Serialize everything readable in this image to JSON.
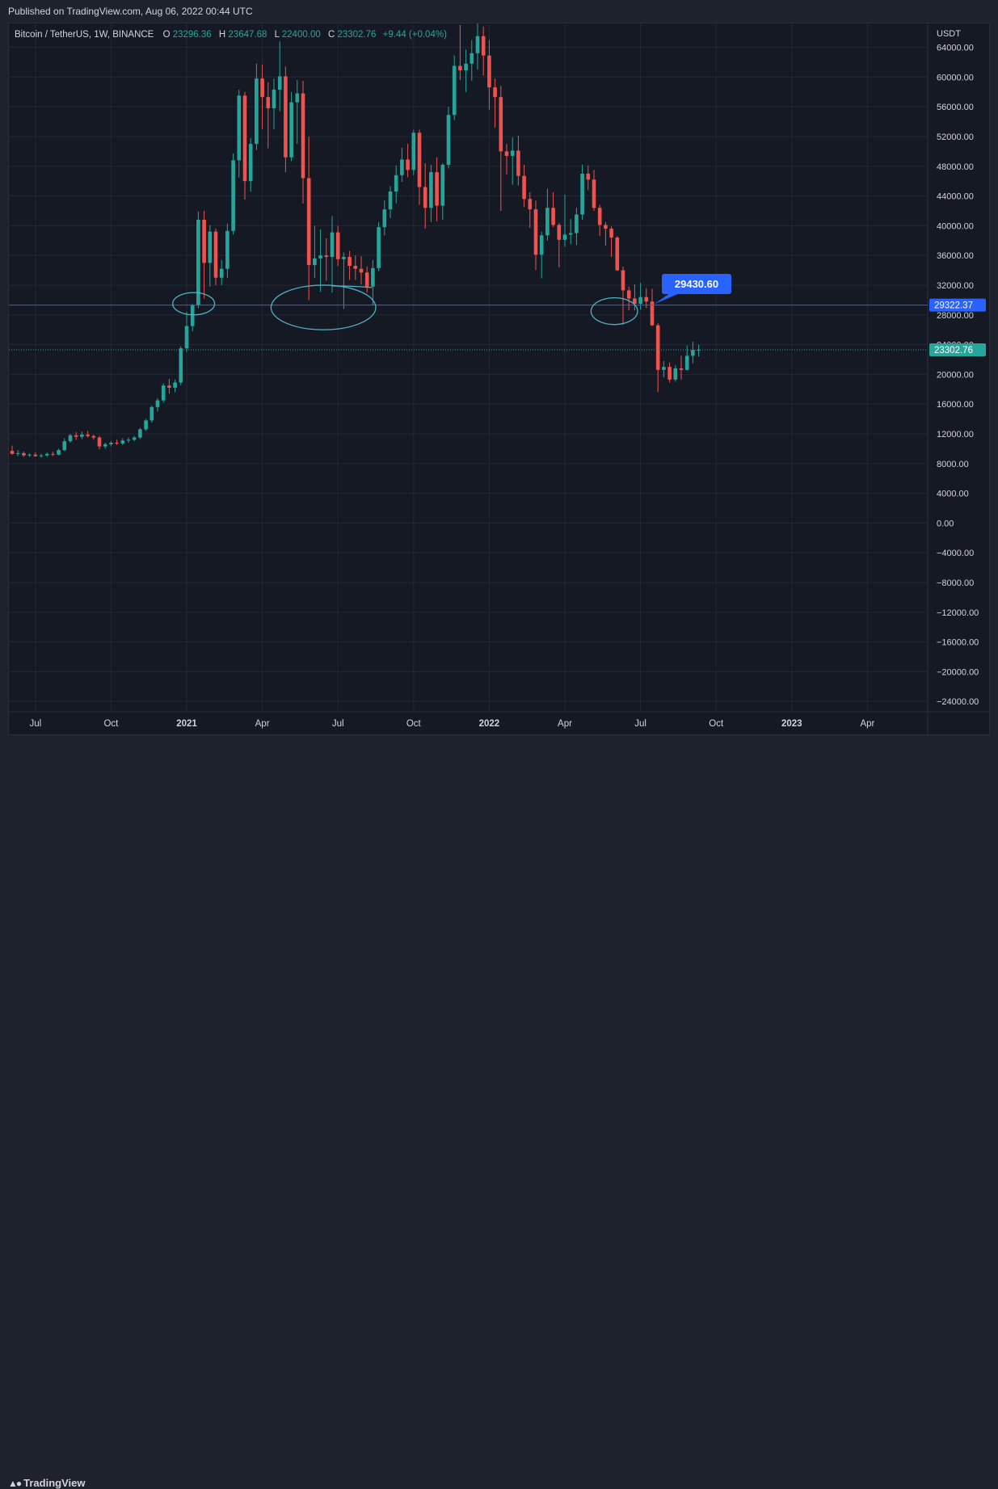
{
  "header": {
    "published": "Published on TradingView.com, Aug 06, 2022 00:44 UTC"
  },
  "footer": {
    "brand": "TradingView",
    "logo_icon": "tradingview-logo-icon"
  },
  "colors": {
    "up": "#26a69a",
    "down": "#ef5350",
    "bg": "#151924",
    "grid": "#232735",
    "hline": "#2962ff",
    "drawing": "#4fb3c4"
  },
  "legend": {
    "symbol": "Bitcoin / TetherUS, 1W, BINANCE",
    "o_label": "O",
    "o": "23296.36",
    "h_label": "H",
    "h": "23647.68",
    "l_label": "L",
    "l": "22400.00",
    "c_label": "C",
    "c": "23302.76",
    "change": "+9.44 (+0.04%)"
  },
  "price_scale": {
    "unit": "USDT",
    "hline_label": "29322.37",
    "last_price_label": "23302.76",
    "callout": "29430.60"
  },
  "chart_data": {
    "type": "candlestick",
    "title": "Bitcoin / TetherUS, 1W, BINANCE",
    "ylabel": "USDT",
    "ylim": [
      -26000,
      67000
    ],
    "y_ticks": [
      "64000.00",
      "60000.00",
      "56000.00",
      "52000.00",
      "48000.00",
      "44000.00",
      "40000.00",
      "36000.00",
      "32000.00",
      "28000.00",
      "24000.00",
      "20000.00",
      "16000.00",
      "12000.00",
      "8000.00",
      "4000.00",
      "0.00",
      "−4000.00",
      "−8000.00",
      "−12000.00",
      "−16000.00",
      "−20000.00",
      "−24000.00"
    ],
    "x_ticks": [
      {
        "label": "Jul",
        "week": 4,
        "bold": false
      },
      {
        "label": "Oct",
        "week": 17,
        "bold": false
      },
      {
        "label": "2021",
        "week": 30,
        "bold": true
      },
      {
        "label": "Apr",
        "week": 43,
        "bold": false
      },
      {
        "label": "Jul",
        "week": 56,
        "bold": false
      },
      {
        "label": "Oct",
        "week": 69,
        "bold": false
      },
      {
        "label": "2022",
        "week": 82,
        "bold": true
      },
      {
        "label": "Apr",
        "week": 95,
        "bold": false
      },
      {
        "label": "Jul",
        "week": 108,
        "bold": false
      },
      {
        "label": "Oct",
        "week": 121,
        "bold": false
      },
      {
        "label": "2023",
        "week": 134,
        "bold": true
      },
      {
        "label": "Apr",
        "week": 147,
        "bold": false
      }
    ],
    "horizontal_line": 29322.37,
    "last_price": 23302.76,
    "callout_value": 29430.6,
    "drawings": [
      {
        "type": "ellipse",
        "week_center": 31.2,
        "price_center": 29500,
        "week_radius": 3.6,
        "price_radius": 1500
      },
      {
        "type": "ellipse",
        "week_center": 53.5,
        "price_center": 29000,
        "week_radius": 9,
        "price_radius": 3000
      },
      {
        "type": "ellipse",
        "week_center": 103.5,
        "price_center": 28500,
        "week_radius": 4,
        "price_radius": 1800
      }
    ],
    "candles": [
      {
        "o": 9700,
        "h": 10400,
        "l": 9200,
        "c": 9300
      },
      {
        "o": 9300,
        "h": 9800,
        "l": 9000,
        "c": 9400
      },
      {
        "o": 9400,
        "h": 9600,
        "l": 8900,
        "c": 9100
      },
      {
        "o": 9100,
        "h": 9400,
        "l": 8900,
        "c": 9200
      },
      {
        "o": 9200,
        "h": 9500,
        "l": 8900,
        "c": 9000
      },
      {
        "o": 9000,
        "h": 9300,
        "l": 8800,
        "c": 9100
      },
      {
        "o": 9100,
        "h": 9500,
        "l": 8900,
        "c": 9300
      },
      {
        "o": 9300,
        "h": 9600,
        "l": 9000,
        "c": 9200
      },
      {
        "o": 9200,
        "h": 10000,
        "l": 9100,
        "c": 9800
      },
      {
        "o": 9800,
        "h": 11400,
        "l": 9700,
        "c": 11000
      },
      {
        "o": 11000,
        "h": 12000,
        "l": 10800,
        "c": 11800
      },
      {
        "o": 11800,
        "h": 12200,
        "l": 11200,
        "c": 11600
      },
      {
        "o": 11600,
        "h": 12300,
        "l": 11300,
        "c": 11900
      },
      {
        "o": 11900,
        "h": 12400,
        "l": 11500,
        "c": 11700
      },
      {
        "o": 11700,
        "h": 11900,
        "l": 11200,
        "c": 11500
      },
      {
        "o": 11500,
        "h": 11700,
        "l": 9900,
        "c": 10300
      },
      {
        "o": 10300,
        "h": 10800,
        "l": 10000,
        "c": 10600
      },
      {
        "o": 10600,
        "h": 11000,
        "l": 10300,
        "c": 10800
      },
      {
        "o": 10800,
        "h": 11200,
        "l": 10500,
        "c": 10700
      },
      {
        "o": 10700,
        "h": 11400,
        "l": 10500,
        "c": 11100
      },
      {
        "o": 11100,
        "h": 11500,
        "l": 10800,
        "c": 11200
      },
      {
        "o": 11200,
        "h": 11700,
        "l": 11000,
        "c": 11500
      },
      {
        "o": 11500,
        "h": 12800,
        "l": 11300,
        "c": 12600
      },
      {
        "o": 12600,
        "h": 14000,
        "l": 12400,
        "c": 13800
      },
      {
        "o": 13800,
        "h": 15800,
        "l": 13500,
        "c": 15600
      },
      {
        "o": 15600,
        "h": 16800,
        "l": 15000,
        "c": 16500
      },
      {
        "o": 16500,
        "h": 18800,
        "l": 16200,
        "c": 18500
      },
      {
        "o": 18500,
        "h": 19400,
        "l": 17400,
        "c": 18200
      },
      {
        "o": 18200,
        "h": 19300,
        "l": 17600,
        "c": 18900
      },
      {
        "o": 18900,
        "h": 23800,
        "l": 18500,
        "c": 23500
      },
      {
        "o": 23500,
        "h": 28400,
        "l": 23000,
        "c": 26500
      },
      {
        "o": 26500,
        "h": 29500,
        "l": 25800,
        "c": 29300
      },
      {
        "o": 29300,
        "h": 41900,
        "l": 28900,
        "c": 40800
      },
      {
        "o": 40800,
        "h": 42000,
        "l": 30200,
        "c": 35000
      },
      {
        "o": 35000,
        "h": 40100,
        "l": 31800,
        "c": 39200
      },
      {
        "o": 39200,
        "h": 39600,
        "l": 32000,
        "c": 33000
      },
      {
        "o": 33000,
        "h": 35400,
        "l": 32000,
        "c": 34200
      },
      {
        "o": 34200,
        "h": 40300,
        "l": 33000,
        "c": 39300
      },
      {
        "o": 39300,
        "h": 49700,
        "l": 38800,
        "c": 48800
      },
      {
        "o": 48800,
        "h": 58300,
        "l": 46500,
        "c": 57500
      },
      {
        "o": 57500,
        "h": 58000,
        "l": 43500,
        "c": 46000
      },
      {
        "o": 46000,
        "h": 51800,
        "l": 44600,
        "c": 51000
      },
      {
        "o": 51000,
        "h": 61800,
        "l": 50200,
        "c": 59800
      },
      {
        "o": 59800,
        "h": 61700,
        "l": 53000,
        "c": 57300
      },
      {
        "o": 57300,
        "h": 59300,
        "l": 50400,
        "c": 55800
      },
      {
        "o": 55800,
        "h": 59800,
        "l": 53000,
        "c": 58300
      },
      {
        "o": 58300,
        "h": 64800,
        "l": 55400,
        "c": 60100
      },
      {
        "o": 60100,
        "h": 61400,
        "l": 47200,
        "c": 49200
      },
      {
        "o": 49200,
        "h": 58000,
        "l": 48700,
        "c": 56600
      },
      {
        "o": 56600,
        "h": 59600,
        "l": 51000,
        "c": 57800
      },
      {
        "o": 57800,
        "h": 59500,
        "l": 43000,
        "c": 46400
      },
      {
        "o": 46400,
        "h": 52000,
        "l": 30000,
        "c": 34700
      },
      {
        "o": 34700,
        "h": 40000,
        "l": 33000,
        "c": 35600
      },
      {
        "o": 35600,
        "h": 39500,
        "l": 31100,
        "c": 36000
      },
      {
        "o": 36000,
        "h": 38300,
        "l": 32600,
        "c": 35800
      },
      {
        "o": 35800,
        "h": 41300,
        "l": 31000,
        "c": 39100
      },
      {
        "o": 39100,
        "h": 40000,
        "l": 34600,
        "c": 35500
      },
      {
        "o": 35500,
        "h": 36400,
        "l": 28800,
        "c": 35800
      },
      {
        "o": 35800,
        "h": 36600,
        "l": 32700,
        "c": 34600
      },
      {
        "o": 34600,
        "h": 36000,
        "l": 32700,
        "c": 34200
      },
      {
        "o": 34200,
        "h": 35900,
        "l": 32100,
        "c": 33700
      },
      {
        "o": 33700,
        "h": 34500,
        "l": 31000,
        "c": 31800
      },
      {
        "o": 31800,
        "h": 35400,
        "l": 29300,
        "c": 34300
      },
      {
        "o": 34300,
        "h": 40500,
        "l": 33900,
        "c": 39800
      },
      {
        "o": 39800,
        "h": 43400,
        "l": 38700,
        "c": 42200
      },
      {
        "o": 42200,
        "h": 45300,
        "l": 41000,
        "c": 44600
      },
      {
        "o": 44600,
        "h": 48100,
        "l": 43000,
        "c": 46800
      },
      {
        "o": 46800,
        "h": 50500,
        "l": 45900,
        "c": 48900
      },
      {
        "o": 48900,
        "h": 51000,
        "l": 46500,
        "c": 47500
      },
      {
        "o": 47500,
        "h": 52900,
        "l": 46800,
        "c": 52500
      },
      {
        "o": 52500,
        "h": 52900,
        "l": 42800,
        "c": 45200
      },
      {
        "o": 45200,
        "h": 48400,
        "l": 39600,
        "c": 42400
      },
      {
        "o": 42400,
        "h": 48200,
        "l": 40500,
        "c": 47200
      },
      {
        "o": 47200,
        "h": 49200,
        "l": 40600,
        "c": 42700
      },
      {
        "o": 42700,
        "h": 48400,
        "l": 40800,
        "c": 48200
      },
      {
        "o": 48200,
        "h": 56000,
        "l": 47700,
        "c": 54900
      },
      {
        "o": 54900,
        "h": 62900,
        "l": 54200,
        "c": 61500
      },
      {
        "o": 61500,
        "h": 67000,
        "l": 59600,
        "c": 60900
      },
      {
        "o": 60900,
        "h": 63700,
        "l": 58000,
        "c": 61800
      },
      {
        "o": 61800,
        "h": 65000,
        "l": 59500,
        "c": 63200
      },
      {
        "o": 63200,
        "h": 67500,
        "l": 61000,
        "c": 65500
      },
      {
        "o": 65500,
        "h": 66800,
        "l": 60200,
        "c": 62900
      },
      {
        "o": 62900,
        "h": 65000,
        "l": 55600,
        "c": 58600
      },
      {
        "o": 58600,
        "h": 59800,
        "l": 53200,
        "c": 57300
      },
      {
        "o": 57300,
        "h": 58800,
        "l": 42000,
        "c": 50000
      },
      {
        "o": 50000,
        "h": 51000,
        "l": 46900,
        "c": 49400
      },
      {
        "o": 49400,
        "h": 51900,
        "l": 45500,
        "c": 50100
      },
      {
        "o": 50100,
        "h": 52100,
        "l": 45400,
        "c": 46700
      },
      {
        "o": 46700,
        "h": 48200,
        "l": 42500,
        "c": 43600
      },
      {
        "o": 43600,
        "h": 44500,
        "l": 39700,
        "c": 42200
      },
      {
        "o": 42200,
        "h": 43400,
        "l": 34000,
        "c": 36100
      },
      {
        "o": 36100,
        "h": 39200,
        "l": 32900,
        "c": 38700
      },
      {
        "o": 38700,
        "h": 45000,
        "l": 38000,
        "c": 42400
      },
      {
        "o": 42400,
        "h": 44500,
        "l": 39800,
        "c": 40100
      },
      {
        "o": 40100,
        "h": 40400,
        "l": 34400,
        "c": 38100
      },
      {
        "o": 38100,
        "h": 44200,
        "l": 37200,
        "c": 38800
      },
      {
        "o": 38800,
        "h": 40900,
        "l": 37500,
        "c": 39000
      },
      {
        "o": 39000,
        "h": 42400,
        "l": 37400,
        "c": 41500
      },
      {
        "o": 41500,
        "h": 48200,
        "l": 40800,
        "c": 47000
      },
      {
        "o": 47000,
        "h": 48100,
        "l": 44800,
        "c": 46200
      },
      {
        "o": 46200,
        "h": 47500,
        "l": 42000,
        "c": 42400
      },
      {
        "o": 42400,
        "h": 42800,
        "l": 38600,
        "c": 40100
      },
      {
        "o": 40100,
        "h": 40500,
        "l": 37300,
        "c": 39600
      },
      {
        "o": 39600,
        "h": 39900,
        "l": 35800,
        "c": 38400
      },
      {
        "o": 38400,
        "h": 38600,
        "l": 33900,
        "c": 34000
      },
      {
        "o": 34000,
        "h": 34500,
        "l": 26700,
        "c": 31300
      },
      {
        "o": 31300,
        "h": 31800,
        "l": 28600,
        "c": 30200
      },
      {
        "o": 30200,
        "h": 32100,
        "l": 28600,
        "c": 29500
      },
      {
        "o": 29500,
        "h": 32300,
        "l": 28700,
        "c": 30400
      },
      {
        "o": 30400,
        "h": 31600,
        "l": 28900,
        "c": 29800
      },
      {
        "o": 29800,
        "h": 31500,
        "l": 26500,
        "c": 26600
      },
      {
        "o": 26600,
        "h": 26900,
        "l": 17600,
        "c": 20600
      },
      {
        "o": 20600,
        "h": 21800,
        "l": 19600,
        "c": 21000
      },
      {
        "o": 21000,
        "h": 21600,
        "l": 18900,
        "c": 19300
      },
      {
        "o": 19300,
        "h": 21200,
        "l": 19000,
        "c": 20800
      },
      {
        "o": 20800,
        "h": 22500,
        "l": 19300,
        "c": 20600
      },
      {
        "o": 20600,
        "h": 23900,
        "l": 20500,
        "c": 22500
      },
      {
        "o": 22500,
        "h": 24400,
        "l": 21500,
        "c": 23300
      },
      {
        "o": 23300,
        "h": 24000,
        "l": 22400,
        "c": 23300
      }
    ]
  }
}
